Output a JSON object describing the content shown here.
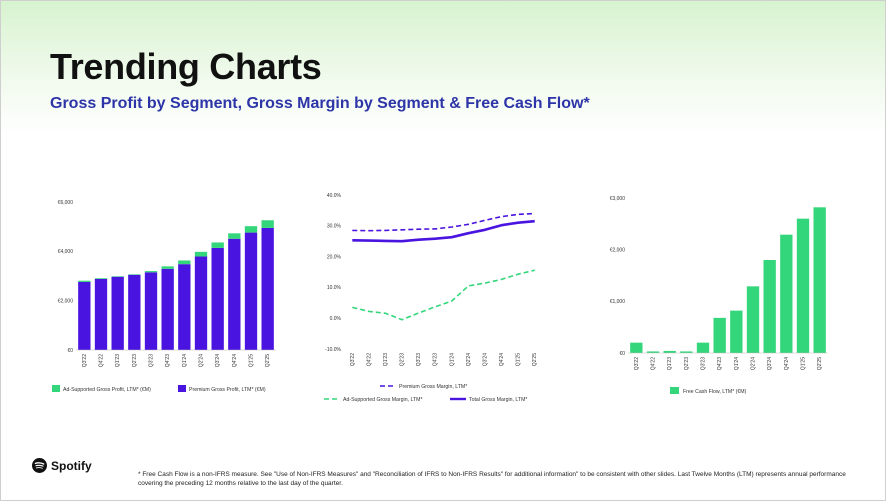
{
  "page": {
    "title": "Trending Charts",
    "subtitle": "Gross Profit by Segment, Gross Margin by Segment & Free Cash Flow*",
    "logo_text": "Spotify",
    "footnote": "* Free Cash Flow is a non-IFRS measure. See \"Use of Non-IFRS Measures\" and \"Reconciliation of IFRS to Non-IFRS Results\" for additional information\" to be consistent with other slides. Last Twelve Months (LTM) represents annual performance covering the preceding 12 months relative to the last day of the quarter.",
    "colors": {
      "premium": "#4a14e0",
      "ad_supported": "#33d67a",
      "logo": "#111111"
    }
  },
  "chart_data": [
    {
      "type": "bar",
      "stacked": true,
      "categories": [
        "Q3'22",
        "Q4'22",
        "Q1'23",
        "Q2'23",
        "Q3'23",
        "Q4'23",
        "Q1'24",
        "Q2'24",
        "Q3'24",
        "Q4'24",
        "Q1'25",
        "Q2'25"
      ],
      "yticks": [
        "€0",
        "€2,000",
        "€4,000",
        "€6,000"
      ],
      "ylim": [
        0,
        6000
      ],
      "series": [
        {
          "name": "Premium Gross Profit, LTM* (€M)",
          "color": "#4a14e0",
          "values": [
            2760,
            2880,
            2970,
            3050,
            3150,
            3290,
            3480,
            3790,
            4140,
            4510,
            4760,
            4950
          ]
        },
        {
          "name": "Ad-Supported Gross Profit, LTM* (€M)",
          "color": "#33d67a",
          "values": [
            50,
            30,
            20,
            20,
            50,
            100,
            150,
            190,
            220,
            220,
            260,
            310
          ]
        }
      ],
      "legend": "bottom"
    },
    {
      "type": "line",
      "categories": [
        "Q3'22",
        "Q4'22",
        "Q1'23",
        "Q2'23",
        "Q3'23",
        "Q4'23",
        "Q1'24",
        "Q2'24",
        "Q3'24",
        "Q4'24",
        "Q1'25",
        "Q2'25"
      ],
      "yticks": [
        "-10.0%",
        "0.0%",
        "10.0%",
        "20.0%",
        "30.0%",
        "40.0%"
      ],
      "ylim": [
        -10,
        40
      ],
      "series": [
        {
          "name": "Premium Gross Margin, LTM*",
          "color": "#4a14e0",
          "dash": true,
          "values": [
            28.5,
            28.4,
            28.5,
            28.7,
            28.9,
            29.0,
            29.6,
            30.5,
            31.8,
            33.0,
            33.7,
            34.0
          ]
        },
        {
          "name": "Ad-Supported Gross Margin, LTM*",
          "color": "#33d67a",
          "dash": true,
          "values": [
            3.5,
            2.2,
            1.6,
            -0.5,
            1.7,
            3.7,
            5.6,
            10.5,
            11.4,
            12.6,
            14.3,
            15.6
          ]
        },
        {
          "name": "Total Gross Margin, LTM*",
          "color": "#4a14e0",
          "dash": false,
          "values": [
            25.3,
            25.2,
            25.1,
            25.0,
            25.5,
            25.8,
            26.3,
            27.6,
            28.7,
            30.2,
            31.0,
            31.5
          ]
        }
      ],
      "legend": "bottom"
    },
    {
      "type": "bar",
      "categories": [
        "Q3'22",
        "Q4'22",
        "Q1'23",
        "Q2'23",
        "Q3'23",
        "Q4'23",
        "Q1'24",
        "Q2'24",
        "Q3'24",
        "Q4'24",
        "Q1'25",
        "Q2'25"
      ],
      "yticks": [
        "€0",
        "€1,000",
        "€2,000",
        "€3,000"
      ],
      "ylim": [
        0,
        3000
      ],
      "series": [
        {
          "name": "Free Cash Flow, LTM* (€M)",
          "color": "#33d67a",
          "values": [
            200,
            30,
            40,
            30,
            200,
            680,
            820,
            1290,
            1800,
            2290,
            2600,
            2820
          ]
        }
      ],
      "legend": "bottom"
    }
  ]
}
